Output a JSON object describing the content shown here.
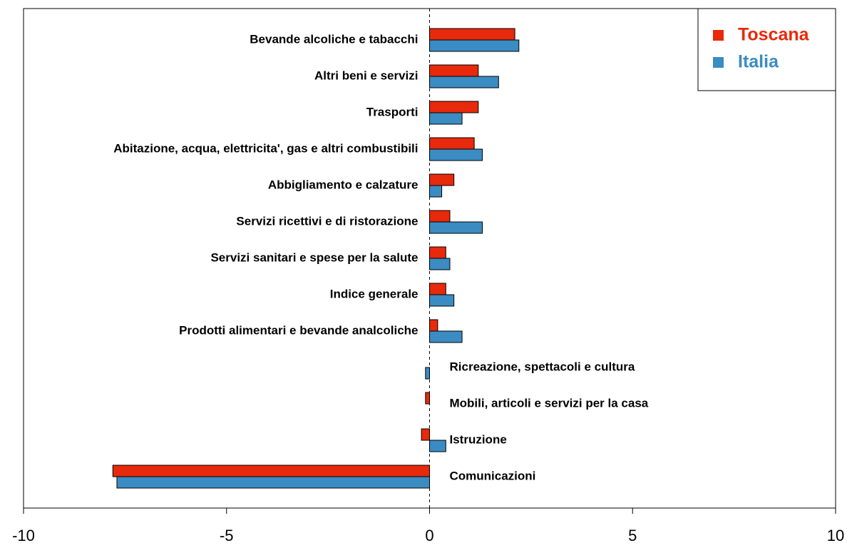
{
  "chart_data": {
    "type": "hbar",
    "categories": [
      "Bevande alcoliche e tabacchi",
      "Altri beni e servizi",
      "Trasporti",
      "Abitazione, acqua, elettricita', gas e altri combustibili",
      "Abbigliamento e calzature",
      "Servizi ricettivi e di ristorazione",
      "Servizi sanitari e spese per la salute",
      "Indice generale",
      "Prodotti alimentari e bevande analcoliche",
      "Ricreazione, spettacoli e cultura",
      "Mobili, articoli e servizi per la casa",
      "Istruzione",
      "Comunicazioni"
    ],
    "series": [
      {
        "name": "Toscana",
        "color": "#e8290b",
        "values": [
          2.1,
          1.2,
          1.2,
          1.1,
          0.6,
          0.5,
          0.4,
          0.4,
          0.2,
          0,
          -0.1,
          -0.2,
          -7.8
        ]
      },
      {
        "name": "Italia",
        "color": "#3a8cc2",
        "values": [
          2.2,
          1.7,
          0.8,
          1.3,
          0.3,
          1.3,
          0.5,
          0.6,
          0.8,
          -0.1,
          0,
          0.4,
          -7.7
        ]
      }
    ],
    "xlim": [
      -10,
      10
    ],
    "xticks": [
      -10,
      -5,
      0,
      5,
      10
    ],
    "legend": "top-right"
  }
}
